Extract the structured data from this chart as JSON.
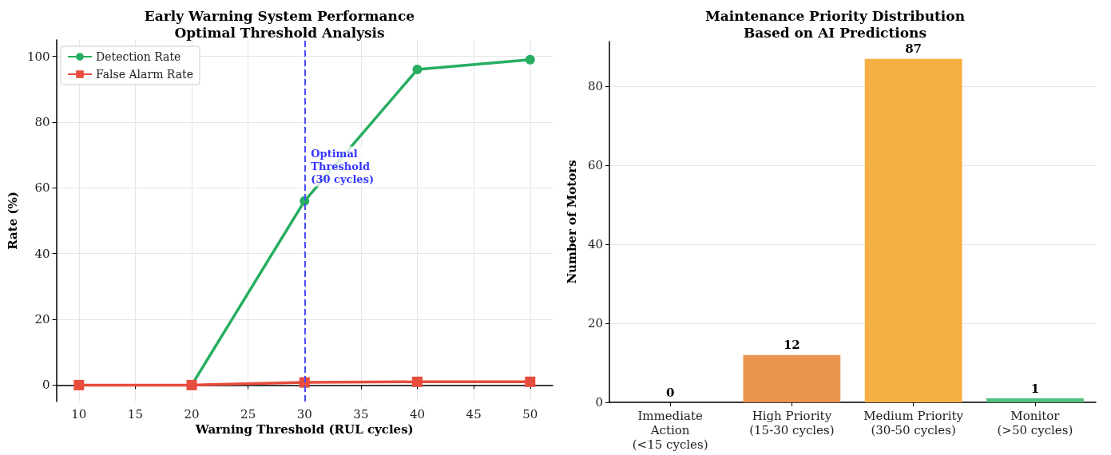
{
  "chart_data": [
    {
      "type": "line",
      "title": "Early Warning System Performance\nOptimal Threshold Analysis",
      "xlabel": "Warning Threshold (RUL cycles)",
      "ylabel": "Rate (%)",
      "x": [
        10,
        20,
        30,
        40,
        50
      ],
      "series": [
        {
          "name": "Detection Rate",
          "color": "#27ae60",
          "marker": "circle",
          "values": [
            null,
            0,
            56,
            96,
            99
          ]
        },
        {
          "name": "False Alarm Rate",
          "color": "#e74c3c",
          "marker": "square",
          "values": [
            0,
            0,
            0.8,
            1.0,
            1.0
          ]
        }
      ],
      "xlim": [
        8,
        52
      ],
      "xticks": [
        10,
        15,
        20,
        25,
        30,
        35,
        40,
        45,
        50
      ],
      "ylim": [
        -5,
        105
      ],
      "yticks": [
        0,
        20,
        40,
        60,
        80,
        100
      ],
      "ref_lines": [
        {
          "axis": "x",
          "value": 30,
          "color": "#4d4dff",
          "line_style": "dashed",
          "label": "Optimal\nThreshold\n(30 cycles)"
        }
      ],
      "grid": true,
      "legend": "top left",
      "line_style": "solid"
    },
    {
      "type": "bar",
      "title": "Maintenance Priority Distribution\nBased on AI Predictions",
      "ylabel": "Number of Motors",
      "categories": [
        "Immediate\nAction\n(<15 cycles)",
        "High Priority\n(15-30 cycles)",
        "Medium Priority\n(30-50 cycles)",
        "Monitor\n(>50 cycles)"
      ],
      "values": [
        0,
        12,
        87,
        1
      ],
      "colors": [
        "#e74c3c",
        "#e9954f",
        "#f4b042",
        "#52be80"
      ],
      "ylim": [
        0,
        91.4
      ],
      "yticks": [
        0,
        20,
        40,
        60,
        80
      ],
      "grid": "y",
      "data_labels": true
    }
  ]
}
